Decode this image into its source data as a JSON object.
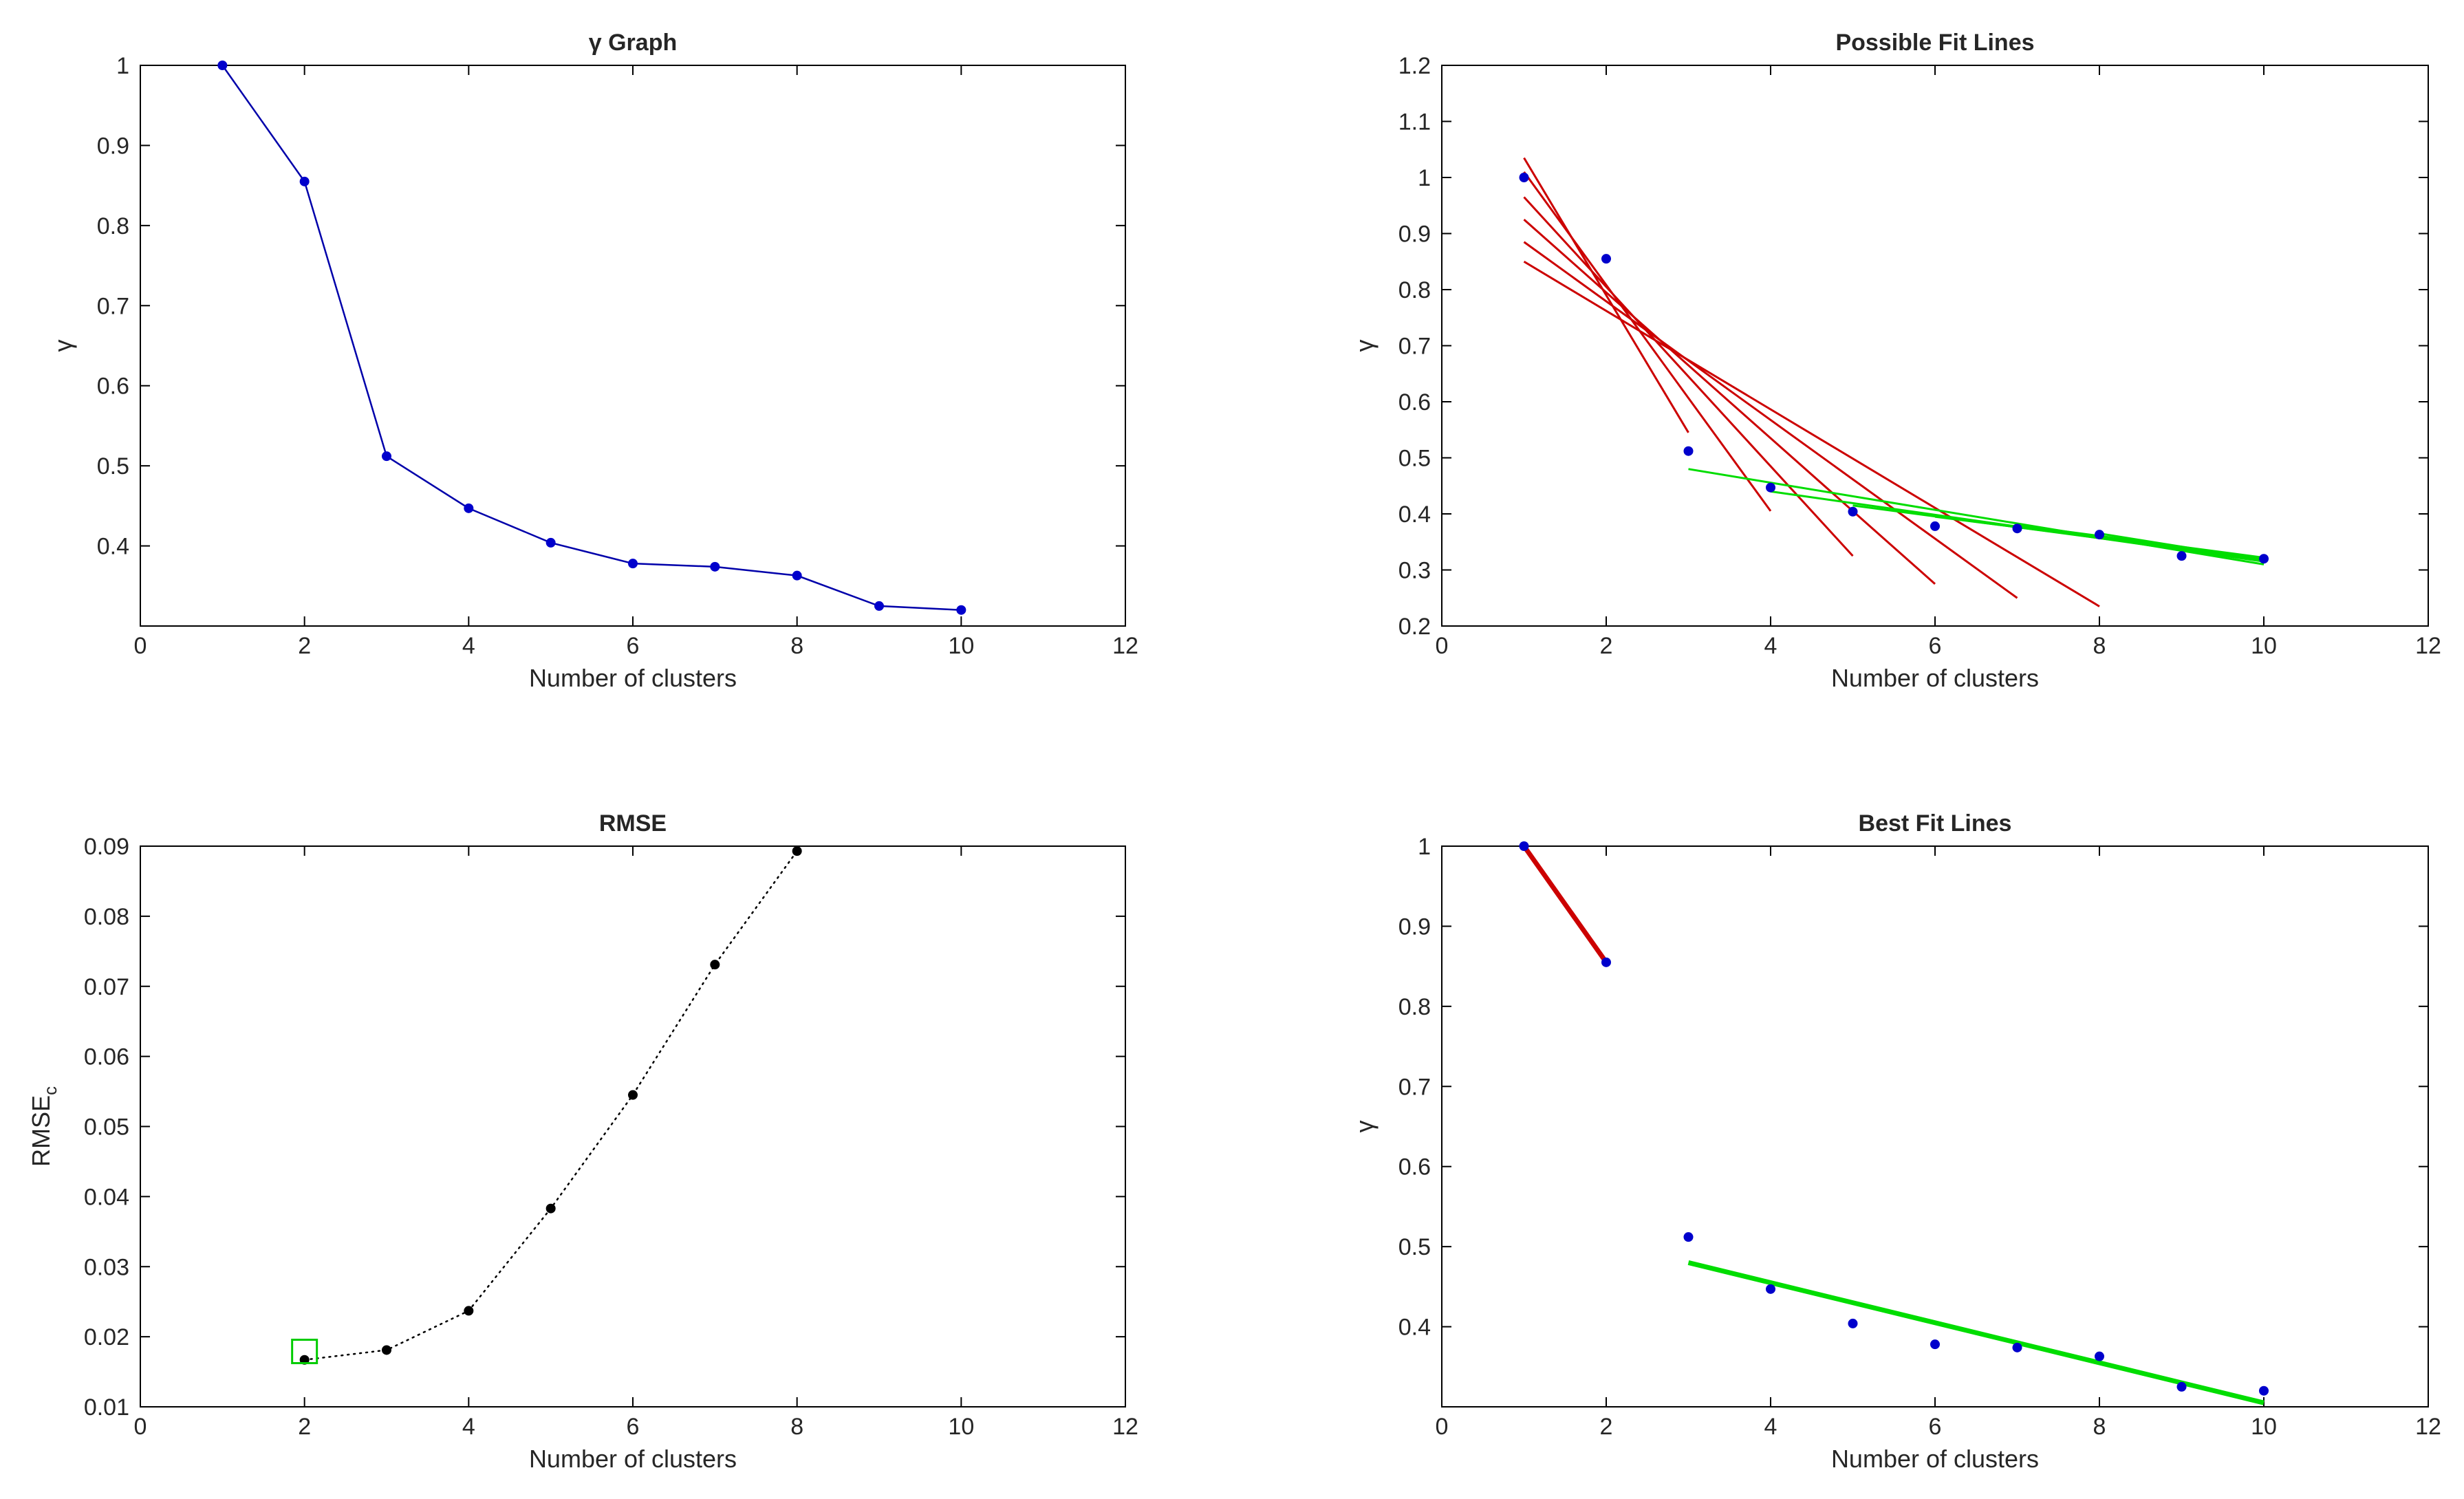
{
  "colors": {
    "data_line": "#0000aa",
    "marker_blue": "#0000cc",
    "marker_black": "#000000",
    "fit_red": "#cc0000",
    "fit_green": "#00dd00",
    "rmse_line": "#000000",
    "highlight_box": "#00cc00"
  },
  "chart_data": [
    {
      "type": "line",
      "title": "γ Graph",
      "xlabel": "Number of clusters",
      "ylabel": "γ",
      "xlim": [
        0,
        12
      ],
      "ylim": [
        0.3,
        1.0
      ],
      "xticks": [
        0,
        2,
        4,
        6,
        8,
        10,
        12
      ],
      "yticks": [
        0.4,
        0.5,
        0.6,
        0.7,
        0.8,
        0.9,
        1
      ],
      "xticklabels": [
        "0",
        "2",
        "4",
        "6",
        "8",
        "10",
        "12"
      ],
      "yticklabels": [
        "0.4",
        "0.5",
        "0.6",
        "0.7",
        "0.8",
        "0.9",
        "1"
      ],
      "series": [
        {
          "name": "γ",
          "style": "solid-line-with-markers",
          "x": [
            1,
            2,
            3,
            4,
            5,
            6,
            7,
            8,
            9,
            10
          ],
          "y": [
            1.0,
            0.855,
            0.512,
            0.447,
            0.404,
            0.378,
            0.374,
            0.363,
            0.325,
            0.32
          ]
        }
      ]
    },
    {
      "type": "scatter",
      "title": "Possible Fit Lines",
      "xlabel": "Number of clusters",
      "ylabel": "γ",
      "xlim": [
        0,
        12
      ],
      "ylim": [
        0.2,
        1.2
      ],
      "xticks": [
        0,
        2,
        4,
        6,
        8,
        10,
        12
      ],
      "yticks": [
        0.2,
        0.3,
        0.4,
        0.5,
        0.6,
        0.7,
        0.8,
        0.9,
        1,
        1.1,
        1.2
      ],
      "xticklabels": [
        "0",
        "2",
        "4",
        "6",
        "8",
        "10",
        "12"
      ],
      "yticklabels": [
        "0.2",
        "0.3",
        "0.4",
        "0.5",
        "0.6",
        "0.7",
        "0.8",
        "0.9",
        "1",
        "1.1",
        "1.2"
      ],
      "series": [
        {
          "name": "γ",
          "style": "markers",
          "x": [
            1,
            2,
            3,
            4,
            5,
            6,
            7,
            8,
            9,
            10
          ],
          "y": [
            1.0,
            0.855,
            0.512,
            0.447,
            0.404,
            0.378,
            0.374,
            0.363,
            0.325,
            0.32
          ]
        }
      ],
      "fit_lines": [
        {
          "color": "red",
          "x": [
            1,
            3
          ],
          "y": [
            1.035,
            0.545
          ]
        },
        {
          "color": "red",
          "x": [
            1,
            4
          ],
          "y": [
            1.01,
            0.405
          ]
        },
        {
          "color": "red",
          "x": [
            1,
            5
          ],
          "y": [
            0.965,
            0.325
          ]
        },
        {
          "color": "red",
          "x": [
            1,
            6
          ],
          "y": [
            0.925,
            0.275
          ]
        },
        {
          "color": "red",
          "x": [
            1,
            7
          ],
          "y": [
            0.885,
            0.25
          ]
        },
        {
          "color": "red",
          "x": [
            1,
            8
          ],
          "y": [
            0.85,
            0.235
          ]
        },
        {
          "color": "green",
          "x": [
            3,
            10
          ],
          "y": [
            0.48,
            0.31
          ]
        },
        {
          "color": "green",
          "x": [
            4,
            10
          ],
          "y": [
            0.44,
            0.315
          ]
        },
        {
          "color": "green",
          "x": [
            5,
            10
          ],
          "y": [
            0.415,
            0.318
          ]
        },
        {
          "color": "green",
          "x": [
            6,
            10
          ],
          "y": [
            0.395,
            0.32
          ]
        },
        {
          "color": "green",
          "x": [
            7,
            10
          ],
          "y": [
            0.38,
            0.322
          ]
        },
        {
          "color": "green",
          "x": [
            8,
            10
          ],
          "y": [
            0.365,
            0.318
          ]
        }
      ]
    },
    {
      "type": "line",
      "title": "RMSE",
      "xlabel": "Number of clusters",
      "ylabel": "RMSE",
      "ylabel_subscript": "c",
      "xlim": [
        0,
        12
      ],
      "ylim": [
        0.01,
        0.09
      ],
      "xticks": [
        0,
        2,
        4,
        6,
        8,
        10,
        12
      ],
      "yticks": [
        0.01,
        0.02,
        0.03,
        0.04,
        0.05,
        0.06,
        0.07,
        0.08,
        0.09
      ],
      "xticklabels": [
        "0",
        "2",
        "4",
        "6",
        "8",
        "10",
        "12"
      ],
      "yticklabels": [
        "0.01",
        "0.02",
        "0.03",
        "0.04",
        "0.05",
        "0.06",
        "0.07",
        "0.08",
        "0.09"
      ],
      "series": [
        {
          "name": "RMSE_c",
          "style": "dotted-line-with-markers",
          "x": [
            2,
            3,
            4,
            5,
            6,
            7,
            8
          ],
          "y": [
            0.0167,
            0.0181,
            0.0237,
            0.0383,
            0.0545,
            0.0731,
            0.0893
          ]
        }
      ],
      "highlight": {
        "x": 2,
        "y": 0.018,
        "shape": "square",
        "color": "green"
      }
    },
    {
      "type": "scatter",
      "title": "Best Fit Lines",
      "xlabel": "Number of clusters",
      "ylabel": "γ",
      "xlim": [
        0,
        12
      ],
      "ylim": [
        0.3,
        1.0
      ],
      "xticks": [
        0,
        2,
        4,
        6,
        8,
        10,
        12
      ],
      "yticks": [
        0.4,
        0.5,
        0.6,
        0.7,
        0.8,
        0.9,
        1
      ],
      "xticklabels": [
        "0",
        "2",
        "4",
        "6",
        "8",
        "10",
        "12"
      ],
      "yticklabels": [
        "0.4",
        "0.5",
        "0.6",
        "0.7",
        "0.8",
        "0.9",
        "1"
      ],
      "series": [
        {
          "name": "γ",
          "style": "markers",
          "x": [
            1,
            2,
            3,
            4,
            5,
            6,
            7,
            8,
            9,
            10
          ],
          "y": [
            1.0,
            0.855,
            0.512,
            0.447,
            0.404,
            0.378,
            0.374,
            0.363,
            0.325,
            0.32
          ]
        }
      ],
      "fit_lines": [
        {
          "color": "red",
          "x": [
            1,
            2
          ],
          "y": [
            1.0,
            0.855
          ]
        },
        {
          "color": "green",
          "x": [
            3,
            10
          ],
          "y": [
            0.48,
            0.305
          ]
        }
      ]
    }
  ]
}
